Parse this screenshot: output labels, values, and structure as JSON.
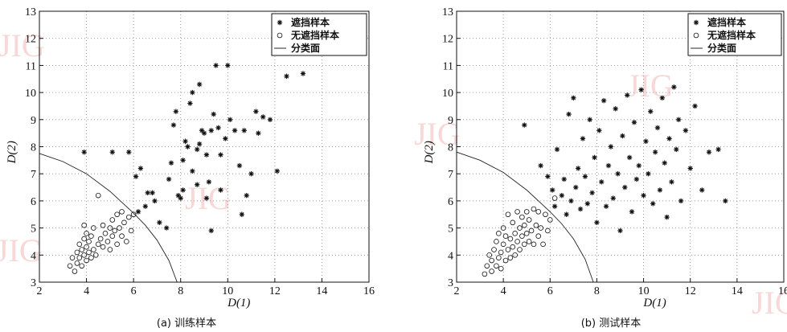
{
  "watermark": "JIG",
  "chart_data": [
    {
      "type": "scatter",
      "caption": "(a) 训练样本",
      "xlabel": "D(1)",
      "ylabel": "D(2)",
      "xlim": [
        2,
        16
      ],
      "ylim": [
        3,
        13
      ],
      "xticks": [
        2,
        4,
        6,
        8,
        10,
        12,
        14,
        16
      ],
      "yticks": [
        3,
        4,
        5,
        6,
        7,
        8,
        9,
        10,
        11,
        12,
        13
      ],
      "grid": true,
      "legend_position": "top-right",
      "legend": [
        "遮挡样本",
        "无遮挡样本",
        "分类面"
      ],
      "series": [
        {
          "name": "遮挡样本",
          "marker": "star",
          "points": [
            [
              3.9,
              7.8
            ],
            [
              5.1,
              7.8
            ],
            [
              5.8,
              7.8
            ],
            [
              6.2,
              5.6
            ],
            [
              6.5,
              5.8
            ],
            [
              6.6,
              6.3
            ],
            [
              6.8,
              6.3
            ],
            [
              6.1,
              6.9
            ],
            [
              6.3,
              7.2
            ],
            [
              6.9,
              6.0
            ],
            [
              7.1,
              5.2
            ],
            [
              7.4,
              5.0
            ],
            [
              7.5,
              6.8
            ],
            [
              7.6,
              7.4
            ],
            [
              7.7,
              8.8
            ],
            [
              7.8,
              9.3
            ],
            [
              7.9,
              6.2
            ],
            [
              8.0,
              6.1
            ],
            [
              8.1,
              6.4
            ],
            [
              8.1,
              7.5
            ],
            [
              8.2,
              8.2
            ],
            [
              8.3,
              8.0
            ],
            [
              8.4,
              9.6
            ],
            [
              8.5,
              7.1
            ],
            [
              8.5,
              10.0
            ],
            [
              8.7,
              7.9
            ],
            [
              8.7,
              6.6
            ],
            [
              8.8,
              8.1
            ],
            [
              8.8,
              10.3
            ],
            [
              8.9,
              8.6
            ],
            [
              9.0,
              8.5
            ],
            [
              9.1,
              7.7
            ],
            [
              9.1,
              6.1
            ],
            [
              9.2,
              6.7
            ],
            [
              9.3,
              8.6
            ],
            [
              9.3,
              4.9
            ],
            [
              9.4,
              9.2
            ],
            [
              9.5,
              11.0
            ],
            [
              9.6,
              8.7
            ],
            [
              9.7,
              6.4
            ],
            [
              9.7,
              7.7
            ],
            [
              9.9,
              8.3
            ],
            [
              10.0,
              11.0
            ],
            [
              10.1,
              9.0
            ],
            [
              10.3,
              8.6
            ],
            [
              10.5,
              7.3
            ],
            [
              10.6,
              5.5
            ],
            [
              10.7,
              8.6
            ],
            [
              10.8,
              6.2
            ],
            [
              11.0,
              7.0
            ],
            [
              11.2,
              9.3
            ],
            [
              11.3,
              8.5
            ],
            [
              11.5,
              9.1
            ],
            [
              11.8,
              9.0
            ],
            [
              12.1,
              7.1
            ],
            [
              12.5,
              10.6
            ],
            [
              13.2,
              10.7
            ]
          ]
        },
        {
          "name": "无遮挡样本",
          "marker": "circle",
          "points": [
            [
              3.3,
              3.6
            ],
            [
              3.4,
              3.9
            ],
            [
              3.5,
              3.4
            ],
            [
              3.6,
              3.7
            ],
            [
              3.6,
              4.1
            ],
            [
              3.7,
              3.9
            ],
            [
              3.7,
              4.4
            ],
            [
              3.8,
              3.6
            ],
            [
              3.8,
              4.2
            ],
            [
              3.9,
              4.6
            ],
            [
              3.9,
              4.0
            ],
            [
              3.9,
              5.1
            ],
            [
              4.0,
              4.3
            ],
            [
              4.0,
              4.8
            ],
            [
              4.0,
              3.8
            ],
            [
              4.1,
              4.5
            ],
            [
              4.1,
              4.1
            ],
            [
              4.2,
              3.9
            ],
            [
              4.2,
              4.7
            ],
            [
              4.3,
              4.2
            ],
            [
              4.3,
              5.0
            ],
            [
              4.4,
              4.0
            ],
            [
              4.5,
              4.4
            ],
            [
              4.5,
              6.2
            ],
            [
              4.6,
              4.6
            ],
            [
              4.7,
              4.3
            ],
            [
              4.7,
              5.1
            ],
            [
              4.8,
              4.8
            ],
            [
              4.9,
              4.5
            ],
            [
              5.0,
              5.0
            ],
            [
              5.0,
              4.2
            ],
            [
              5.1,
              5.3
            ],
            [
              5.1,
              4.7
            ],
            [
              5.2,
              4.9
            ],
            [
              5.3,
              5.5
            ],
            [
              5.3,
              4.4
            ],
            [
              5.4,
              5.0
            ],
            [
              5.5,
              4.7
            ],
            [
              5.5,
              5.6
            ],
            [
              5.6,
              5.2
            ],
            [
              5.7,
              4.5
            ],
            [
              5.8,
              5.4
            ],
            [
              5.9,
              4.9
            ],
            [
              6.0,
              5.5
            ]
          ]
        }
      ],
      "boundary": [
        [
          2.0,
          7.75
        ],
        [
          3.0,
          7.45
        ],
        [
          4.0,
          7.0
        ],
        [
          5.0,
          6.35
        ],
        [
          6.0,
          5.55
        ],
        [
          6.5,
          5.1
        ],
        [
          7.0,
          4.55
        ],
        [
          7.5,
          3.8
        ],
        [
          7.85,
          3.0
        ]
      ]
    },
    {
      "type": "scatter",
      "caption": "(b) 测试样本",
      "xlabel": "D(1)",
      "ylabel": "D(2)",
      "xlim": [
        2,
        16
      ],
      "ylim": [
        3,
        13
      ],
      "xticks": [
        2,
        4,
        6,
        8,
        10,
        12,
        14,
        16
      ],
      "yticks": [
        3,
        4,
        5,
        6,
        7,
        8,
        9,
        10,
        11,
        12,
        13
      ],
      "grid": true,
      "legend_position": "top-right",
      "legend": [
        "遮挡样本",
        "无遮挡样本",
        "分类面"
      ],
      "series": [
        {
          "name": "遮挡样本",
          "marker": "star",
          "points": [
            [
              4.9,
              8.8
            ],
            [
              5.6,
              7.3
            ],
            [
              5.9,
              6.9
            ],
            [
              6.1,
              6.4
            ],
            [
              6.2,
              5.8
            ],
            [
              6.3,
              7.9
            ],
            [
              6.5,
              6.2
            ],
            [
              6.6,
              6.8
            ],
            [
              6.7,
              5.5
            ],
            [
              6.8,
              9.2
            ],
            [
              6.9,
              6.0
            ],
            [
              7.0,
              9.8
            ],
            [
              7.1,
              6.5
            ],
            [
              7.2,
              7.2
            ],
            [
              7.3,
              5.7
            ],
            [
              7.4,
              8.3
            ],
            [
              7.5,
              6.9
            ],
            [
              7.6,
              5.9
            ],
            [
              7.7,
              9.0
            ],
            [
              7.8,
              6.3
            ],
            [
              7.9,
              7.6
            ],
            [
              8.0,
              5.2
            ],
            [
              8.1,
              8.6
            ],
            [
              8.2,
              6.7
            ],
            [
              8.3,
              9.7
            ],
            [
              8.4,
              5.8
            ],
            [
              8.5,
              7.3
            ],
            [
              8.6,
              8.0
            ],
            [
              8.7,
              6.1
            ],
            [
              8.8,
              9.4
            ],
            [
              8.9,
              7.0
            ],
            [
              9.0,
              4.9
            ],
            [
              9.1,
              8.4
            ],
            [
              9.2,
              6.5
            ],
            [
              9.3,
              9.9
            ],
            [
              9.4,
              7.6
            ],
            [
              9.5,
              5.6
            ],
            [
              9.6,
              8.9
            ],
            [
              9.7,
              6.8
            ],
            [
              9.8,
              7.3
            ],
            [
              9.9,
              10.1
            ],
            [
              10.0,
              6.2
            ],
            [
              10.1,
              8.2
            ],
            [
              10.2,
              7.0
            ],
            [
              10.3,
              9.3
            ],
            [
              10.4,
              5.9
            ],
            [
              10.5,
              7.8
            ],
            [
              10.6,
              8.7
            ],
            [
              10.7,
              6.4
            ],
            [
              10.8,
              9.8
            ],
            [
              10.9,
              7.4
            ],
            [
              11.0,
              5.4
            ],
            [
              11.1,
              8.3
            ],
            [
              11.2,
              6.7
            ],
            [
              11.3,
              10.2
            ],
            [
              11.4,
              7.9
            ],
            [
              11.5,
              9.0
            ],
            [
              11.6,
              6.0
            ],
            [
              11.8,
              8.6
            ],
            [
              12.0,
              7.2
            ],
            [
              12.2,
              9.5
            ],
            [
              12.5,
              6.4
            ],
            [
              12.8,
              7.8
            ],
            [
              13.2,
              7.9
            ],
            [
              13.5,
              6.0
            ]
          ]
        },
        {
          "name": "无遮挡样本",
          "marker": "circle",
          "points": [
            [
              3.2,
              3.3
            ],
            [
              3.3,
              3.6
            ],
            [
              3.4,
              4.0
            ],
            [
              3.5,
              3.4
            ],
            [
              3.5,
              3.8
            ],
            [
              3.6,
              4.2
            ],
            [
              3.7,
              3.6
            ],
            [
              3.7,
              4.5
            ],
            [
              3.8,
              3.9
            ],
            [
              3.8,
              4.8
            ],
            [
              3.9,
              4.1
            ],
            [
              3.9,
              3.5
            ],
            [
              4.0,
              4.4
            ],
            [
              4.0,
              5.0
            ],
            [
              4.1,
              3.8
            ],
            [
              4.1,
              4.7
            ],
            [
              4.2,
              4.2
            ],
            [
              4.2,
              5.5
            ],
            [
              4.3,
              3.9
            ],
            [
              4.3,
              4.6
            ],
            [
              4.4,
              4.3
            ],
            [
              4.4,
              5.2
            ],
            [
              4.5,
              4.0
            ],
            [
              4.5,
              4.8
            ],
            [
              4.6,
              4.5
            ],
            [
              4.6,
              5.6
            ],
            [
              4.7,
              4.2
            ],
            [
              4.7,
              5.0
            ],
            [
              4.8,
              4.7
            ],
            [
              4.8,
              5.4
            ],
            [
              4.9,
              4.4
            ],
            [
              4.9,
              5.1
            ],
            [
              5.0,
              4.8
            ],
            [
              5.0,
              5.6
            ],
            [
              5.1,
              4.5
            ],
            [
              5.1,
              5.3
            ],
            [
              5.2,
              4.9
            ],
            [
              5.3,
              5.7
            ],
            [
              5.3,
              4.4
            ],
            [
              5.4,
              5.1
            ],
            [
              5.5,
              4.7
            ],
            [
              5.5,
              5.6
            ],
            [
              5.6,
              5.0
            ],
            [
              5.7,
              4.4
            ],
            [
              5.8,
              5.5
            ],
            [
              5.9,
              4.9
            ],
            [
              6.0,
              5.3
            ],
            [
              6.2,
              6.1
            ]
          ]
        }
      ],
      "boundary": [
        [
          2.0,
          7.8
        ],
        [
          3.0,
          7.5
        ],
        [
          4.0,
          7.05
        ],
        [
          5.0,
          6.4
        ],
        [
          6.0,
          5.6
        ],
        [
          6.5,
          5.15
        ],
        [
          7.0,
          4.6
        ],
        [
          7.5,
          3.85
        ],
        [
          7.85,
          3.0
        ]
      ]
    }
  ]
}
